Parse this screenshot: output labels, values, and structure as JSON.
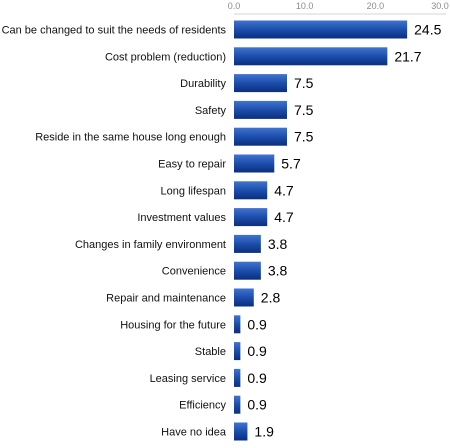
{
  "chart_data": {
    "type": "bar",
    "orientation": "horizontal",
    "categories": [
      "Can be changed to suit the needs of residents",
      "Cost problem (reduction)",
      "Durability",
      "Safety",
      "Reside in the same house long enough",
      "Easy to repair",
      "Long lifespan",
      "Investment values",
      "Changes in family environment",
      "Convenience",
      "Repair and maintenance",
      "Housing for the future",
      "Stable",
      "Leasing service",
      "Efficiency",
      "Have no idea"
    ],
    "values": [
      24.5,
      21.7,
      7.5,
      7.5,
      7.5,
      5.7,
      4.7,
      4.7,
      3.8,
      3.8,
      2.8,
      0.9,
      0.9,
      0.9,
      0.9,
      1.9
    ],
    "value_labels": [
      "24.5",
      "21.7",
      "7.5",
      "7.5",
      "7.5",
      "5.7",
      "4.7",
      "4.7",
      "3.8",
      "3.8",
      "2.8",
      "0.9",
      "0.9",
      "0.9",
      "0.9",
      "1.9"
    ],
    "xticks": [
      "0.0",
      "10.0",
      "20.0",
      "30.0"
    ],
    "xlim": [
      0,
      30
    ],
    "grid": false,
    "bar_color": "#1a4aa8",
    "bar_color_light": "#3f74d0",
    "bar_color_dark": "#0b2f7c"
  }
}
